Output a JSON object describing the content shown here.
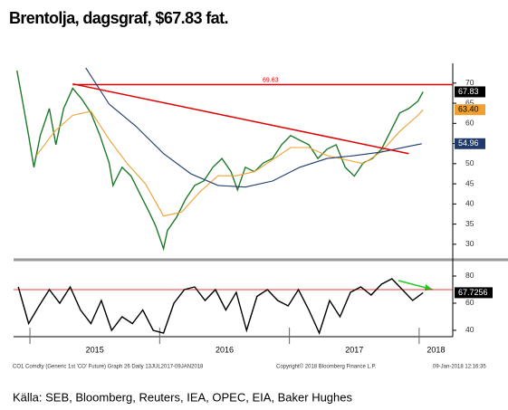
{
  "title": "Brentolja, dagsgraf, $67.83 fat.",
  "source": "Källa: SEB, Bloomberg, Reuters, IEA, OPEC, EIA, Baker Hughes",
  "footer": {
    "left": "CO1 Comdty (Generic 1st 'CO' Future) Graph 26  Daily 13JUL2017-09JAN2018",
    "center": "Copyright© 2018 Bloomberg Finance L.P.",
    "right": "09-Jan-2018 12:16:35"
  },
  "chart_data": [
    {
      "type": "line",
      "xlim": [
        2014.874,
        2018.259
      ],
      "xticks": [
        2015,
        2016,
        2017,
        2018
      ],
      "ylim": [
        26.6,
        74.9
      ],
      "yticks": [
        30,
        35,
        40,
        45,
        50,
        55,
        60,
        65,
        70
      ],
      "series": [
        {
          "color": "#1e7a2a",
          "x": [
            2014.9,
            2014.94,
            2014.99,
            2015.03,
            2015.08,
            2015.15,
            2015.2,
            2015.26,
            2015.33,
            2015.4,
            2015.47,
            2015.54,
            2015.61,
            2015.64,
            2015.71,
            2015.78,
            2015.85,
            2015.92,
            2015.97,
            2016.03,
            2016.06,
            2016.13,
            2016.2,
            2016.27,
            2016.34,
            2016.41,
            2016.48,
            2016.55,
            2016.6,
            2016.66,
            2016.73,
            2016.8,
            2016.87,
            2016.94,
            2017.01,
            2017.08,
            2017.15,
            2017.22,
            2017.29,
            2017.36,
            2017.43,
            2017.5,
            2017.57,
            2017.64,
            2017.71,
            2017.78,
            2017.85,
            2017.92,
            2017.99,
            2018.03
          ],
          "values": [
            73.1,
            66.0,
            57.0,
            49.1,
            57.0,
            63.7,
            54.7,
            63.7,
            68.7,
            66.0,
            62.6,
            57.0,
            50.2,
            44.6,
            49.1,
            46.9,
            42.4,
            37.9,
            34.5,
            28.9,
            33.4,
            36.7,
            41.2,
            44.6,
            45.7,
            49.1,
            51.3,
            48.0,
            43.5,
            49.1,
            48.0,
            50.2,
            51.3,
            54.7,
            57.0,
            55.8,
            54.7,
            51.3,
            53.6,
            54.7,
            49.1,
            46.9,
            50.2,
            51.3,
            53.6,
            58.1,
            62.6,
            63.7,
            65.5,
            67.83
          ]
        },
        {
          "color": "#f0a030",
          "x": [
            2015.05,
            2015.19,
            2015.33,
            2015.47,
            2015.61,
            2015.75,
            2015.89,
            2016.03,
            2016.17,
            2016.31,
            2016.45,
            2016.59,
            2016.73,
            2016.87,
            2017.01,
            2017.15,
            2017.29,
            2017.43,
            2017.57,
            2017.71,
            2017.85,
            2017.99,
            2018.03
          ],
          "values": [
            52,
            58,
            62,
            63,
            56,
            50,
            45,
            37,
            38,
            43,
            47,
            47,
            48,
            51,
            54,
            54,
            52,
            51,
            50,
            53,
            58,
            62,
            63.4
          ]
        },
        {
          "color": "#1f3a6b",
          "x": [
            2015.43,
            2015.61,
            2015.82,
            2016.03,
            2016.24,
            2016.45,
            2016.66,
            2016.87,
            2017.08,
            2017.29,
            2017.5,
            2017.71,
            2017.92,
            2018.02
          ],
          "values": [
            73.8,
            64.8,
            59.2,
            52.5,
            47.5,
            44.6,
            44.2,
            45.7,
            49.1,
            51.3,
            52.0,
            52.9,
            54.3,
            54.96
          ]
        }
      ],
      "trendline": {
        "color": "#e00000",
        "x": [
          2015.33,
          2017.92
        ],
        "values": [
          69.8,
          52.5
        ]
      },
      "hline": {
        "color": "#e00000",
        "value": 69.63
      },
      "price_tags": [
        67.83,
        {
          "value": 63.4,
          "label": "63.40"
        },
        54.96
      ],
      "price_tag_colors": [
        "#000000",
        "#f0a030",
        "#1f3a6b"
      ]
    },
    {
      "type": "line",
      "xlim": [
        2014.874,
        2018.259
      ],
      "xticks": [
        2015,
        2016,
        2017,
        2018
      ],
      "ylim": [
        35.3,
        90
      ],
      "yticks": [
        40,
        60,
        80
      ],
      "series": [
        {
          "color": "#000000",
          "x": [
            2014.91,
            2014.99,
            2015.07,
            2015.15,
            2015.23,
            2015.31,
            2015.39,
            2015.47,
            2015.55,
            2015.63,
            2015.71,
            2015.79,
            2015.87,
            2015.95,
            2016.03,
            2016.11,
            2016.19,
            2016.27,
            2016.35,
            2016.43,
            2016.51,
            2016.59,
            2016.67,
            2016.75,
            2016.83,
            2016.91,
            2016.99,
            2017.07,
            2017.15,
            2017.23,
            2017.31,
            2017.39,
            2017.47,
            2017.55,
            2017.63,
            2017.71,
            2017.79,
            2017.87,
            2017.95,
            2018.03
          ],
          "values": [
            72,
            45,
            58,
            70,
            60,
            72,
            55,
            45,
            62,
            40,
            50,
            45,
            55,
            40,
            38,
            60,
            70,
            72,
            62,
            70,
            55,
            68,
            40,
            65,
            70,
            62,
            58,
            70,
            55,
            38,
            62,
            50,
            68,
            72,
            66,
            74,
            78,
            70,
            62,
            67.7256
          ]
        }
      ],
      "hline": {
        "color": "#e00000",
        "value": 70
      },
      "price_tags": [
        67.7256
      ],
      "price_tag_colors": [
        "#000000"
      ]
    }
  ]
}
